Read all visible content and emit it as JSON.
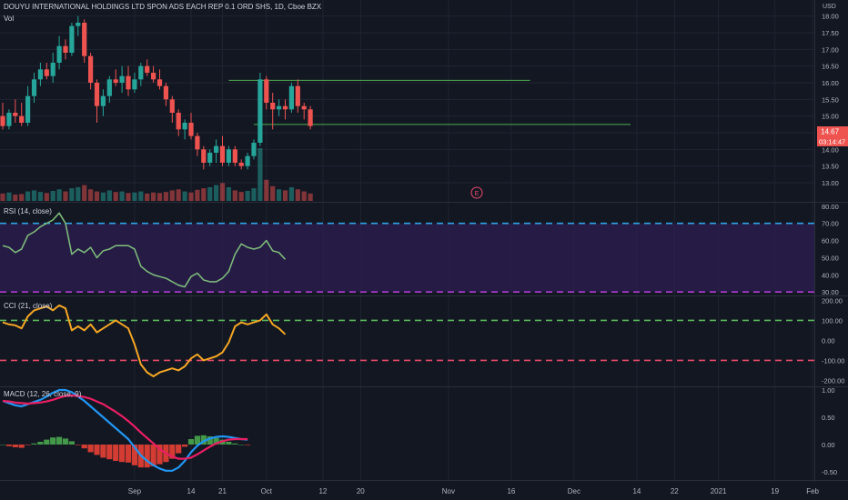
{
  "header": {
    "title": "DOUYU INTERNATIONAL HOLDINGS LTD SPON ADS EACH REP 0.1 ORD SHS, 1D, Cboe BZX",
    "vol_label": "Vol",
    "currency": "USD"
  },
  "colors": {
    "background": "#131722",
    "up": "#26a69a",
    "down": "#ef5350",
    "grid": "#1f2433",
    "divider": "#2a2e39",
    "axis_text": "#b2b5be",
    "trendline": "#4caf50",
    "rsi_line": "#7cb87a",
    "rsi_upper": "#2fa6e8",
    "rsi_lower": "#b03bd4",
    "rsi_band": "#2b1d4d",
    "cci_line": "#f5a623",
    "cci_upper": "#5cb85c",
    "cci_lower": "#e84a6b",
    "macd_line": "#2196f3",
    "signal_line": "#e91e63"
  },
  "x_axis": {
    "ticks": [
      {
        "label": "Sep",
        "pos": 21
      },
      {
        "label": "14",
        "pos": 30
      },
      {
        "label": "21",
        "pos": 35
      },
      {
        "label": "Oct",
        "pos": 42
      },
      {
        "label": "12",
        "pos": 51
      },
      {
        "label": "20",
        "pos": 57
      },
      {
        "label": "Nov",
        "pos": 71
      },
      {
        "label": "16",
        "pos": 81
      },
      {
        "label": "Dec",
        "pos": 91
      },
      {
        "label": "14",
        "pos": 101
      },
      {
        "label": "22",
        "pos": 107
      },
      {
        "label": "2021",
        "pos": 114
      },
      {
        "label": "19",
        "pos": 123
      },
      {
        "label": "Feb",
        "pos": 129
      }
    ]
  },
  "price_axis": {
    "ticks": [
      "18.00",
      "17.50",
      "17.00",
      "16.50",
      "16.00",
      "15.50",
      "15.00",
      "14.50",
      "14.00",
      "13.50",
      "13.00"
    ],
    "last_price": "14.67",
    "countdown": "03:14:47"
  },
  "earnings_marker": "E",
  "panels": {
    "rsi": {
      "label": "RSI (14, close)",
      "ticks": [
        "80.00",
        "70.00",
        "60.00",
        "50.00",
        "40.00",
        "30.00"
      ]
    },
    "cci": {
      "label": "CCI (21, close)",
      "ticks": [
        "200.00",
        "100.00",
        "0.00",
        "-100.00",
        "-200.00"
      ]
    },
    "macd": {
      "label": "MACD (12, 26, close, 9)",
      "ticks": [
        "1.00",
        "0.50",
        "0.00",
        "-0.50"
      ]
    }
  },
  "chart_data": {
    "type": "candlestick",
    "price": {
      "ylim": [
        12.7,
        18.1
      ],
      "candles": [
        {
          "o": 15.0,
          "h": 15.4,
          "l": 14.6,
          "c": 14.7
        },
        {
          "o": 14.7,
          "h": 15.2,
          "l": 14.6,
          "c": 15.1
        },
        {
          "o": 15.1,
          "h": 15.5,
          "l": 14.8,
          "c": 15.0
        },
        {
          "o": 15.0,
          "h": 15.4,
          "l": 14.7,
          "c": 14.8
        },
        {
          "o": 14.8,
          "h": 15.9,
          "l": 14.7,
          "c": 15.6
        },
        {
          "o": 15.6,
          "h": 16.3,
          "l": 15.4,
          "c": 16.1
        },
        {
          "o": 16.1,
          "h": 16.6,
          "l": 15.9,
          "c": 16.4
        },
        {
          "o": 16.4,
          "h": 16.6,
          "l": 16.1,
          "c": 16.2
        },
        {
          "o": 16.2,
          "h": 16.9,
          "l": 16.0,
          "c": 16.6
        },
        {
          "o": 16.6,
          "h": 17.4,
          "l": 16.4,
          "c": 17.1
        },
        {
          "o": 17.1,
          "h": 17.3,
          "l": 16.7,
          "c": 16.9
        },
        {
          "o": 16.9,
          "h": 17.8,
          "l": 16.8,
          "c": 17.7
        },
        {
          "o": 17.7,
          "h": 18.0,
          "l": 17.4,
          "c": 17.8
        },
        {
          "o": 17.8,
          "h": 17.9,
          "l": 16.6,
          "c": 16.8
        },
        {
          "o": 16.8,
          "h": 16.9,
          "l": 15.8,
          "c": 16.0
        },
        {
          "o": 16.0,
          "h": 16.1,
          "l": 14.8,
          "c": 15.3
        },
        {
          "o": 15.3,
          "h": 15.8,
          "l": 15.0,
          "c": 15.6
        },
        {
          "o": 15.6,
          "h": 16.2,
          "l": 15.4,
          "c": 16.1
        },
        {
          "o": 16.1,
          "h": 16.4,
          "l": 15.9,
          "c": 16.0
        },
        {
          "o": 16.0,
          "h": 16.5,
          "l": 15.7,
          "c": 16.2
        },
        {
          "o": 16.2,
          "h": 16.5,
          "l": 15.6,
          "c": 15.8
        },
        {
          "o": 15.8,
          "h": 16.3,
          "l": 15.7,
          "c": 16.1
        },
        {
          "o": 16.1,
          "h": 16.6,
          "l": 15.9,
          "c": 16.5
        },
        {
          "o": 16.5,
          "h": 16.7,
          "l": 16.2,
          "c": 16.3
        },
        {
          "o": 16.3,
          "h": 16.5,
          "l": 16.0,
          "c": 16.1
        },
        {
          "o": 16.1,
          "h": 16.4,
          "l": 15.8,
          "c": 15.9
        },
        {
          "o": 15.9,
          "h": 16.0,
          "l": 15.3,
          "c": 15.5
        },
        {
          "o": 15.5,
          "h": 15.6,
          "l": 14.8,
          "c": 15.1
        },
        {
          "o": 15.1,
          "h": 15.2,
          "l": 14.4,
          "c": 14.6
        },
        {
          "o": 14.6,
          "h": 14.9,
          "l": 14.3,
          "c": 14.8
        },
        {
          "o": 14.8,
          "h": 15.1,
          "l": 14.3,
          "c": 14.4
        },
        {
          "o": 14.4,
          "h": 14.5,
          "l": 13.8,
          "c": 14.0
        },
        {
          "o": 14.0,
          "h": 14.1,
          "l": 13.4,
          "c": 13.6
        },
        {
          "o": 13.6,
          "h": 14.0,
          "l": 13.5,
          "c": 13.9
        },
        {
          "o": 13.9,
          "h": 14.3,
          "l": 13.6,
          "c": 14.1
        },
        {
          "o": 14.1,
          "h": 14.4,
          "l": 13.5,
          "c": 13.6
        },
        {
          "o": 13.6,
          "h": 14.1,
          "l": 13.5,
          "c": 14.0
        },
        {
          "o": 14.0,
          "h": 14.1,
          "l": 13.5,
          "c": 13.6
        },
        {
          "o": 13.6,
          "h": 13.7,
          "l": 13.4,
          "c": 13.5
        },
        {
          "o": 13.5,
          "h": 13.9,
          "l": 13.4,
          "c": 13.8
        },
        {
          "o": 13.8,
          "h": 14.3,
          "l": 13.7,
          "c": 14.2
        },
        {
          "o": 14.2,
          "h": 16.3,
          "l": 14.1,
          "c": 16.1
        },
        {
          "o": 16.1,
          "h": 16.2,
          "l": 15.2,
          "c": 15.4
        },
        {
          "o": 15.4,
          "h": 15.7,
          "l": 14.6,
          "c": 15.2
        },
        {
          "o": 15.2,
          "h": 15.5,
          "l": 15.0,
          "c": 15.3
        },
        {
          "o": 15.3,
          "h": 15.5,
          "l": 14.9,
          "c": 15.2
        },
        {
          "o": 15.2,
          "h": 16.0,
          "l": 15.1,
          "c": 15.9
        },
        {
          "o": 15.9,
          "h": 16.1,
          "l": 15.1,
          "c": 15.3
        },
        {
          "o": 15.3,
          "h": 15.4,
          "l": 14.9,
          "c": 15.2
        },
        {
          "o": 15.2,
          "h": 15.3,
          "l": 14.6,
          "c": 14.7
        }
      ],
      "volume": [
        14,
        16,
        12,
        13,
        18,
        20,
        17,
        15,
        19,
        22,
        18,
        24,
        26,
        30,
        22,
        18,
        16,
        20,
        17,
        18,
        15,
        16,
        18,
        14,
        16,
        15,
        17,
        20,
        22,
        18,
        16,
        21,
        24,
        26,
        30,
        34,
        26,
        20,
        17,
        19,
        24,
        100,
        40,
        28,
        22,
        20,
        26,
        22,
        18,
        14
      ],
      "trendlines": [
        {
          "value": 16.07,
          "x_start": 36,
          "x_end": 84
        },
        {
          "value": 14.75,
          "x_start": 40,
          "x_end": 100
        }
      ]
    },
    "rsi": {
      "ylim": [
        28,
        82
      ],
      "upper": 70,
      "lower": 30,
      "values": [
        57,
        56,
        53,
        55,
        63,
        65,
        68,
        70,
        72,
        76,
        70,
        52,
        55,
        53,
        56,
        50,
        54,
        55,
        57,
        57,
        57,
        55,
        45,
        42,
        40,
        39,
        38,
        36,
        34,
        33,
        39,
        41,
        37,
        36,
        36,
        38,
        42,
        52,
        58,
        56,
        55,
        56,
        60,
        54,
        53,
        49
      ]
    },
    "cci": {
      "ylim": [
        -230,
        220
      ],
      "upper": 100,
      "lower": -100,
      "values": [
        90,
        80,
        75,
        60,
        120,
        150,
        160,
        170,
        150,
        175,
        160,
        50,
        70,
        50,
        80,
        40,
        60,
        80,
        100,
        80,
        60,
        -20,
        -120,
        -160,
        -180,
        -160,
        -150,
        -140,
        -150,
        -130,
        -90,
        -70,
        -100,
        -90,
        -80,
        -60,
        -10,
        70,
        90,
        80,
        90,
        100,
        130,
        80,
        60,
        30
      ]
    },
    "macd": {
      "ylim": [
        -0.65,
        1.05
      ],
      "macd_values": [
        0.8,
        0.76,
        0.72,
        0.7,
        0.74,
        0.78,
        0.82,
        0.88,
        0.95,
        1.0,
        1.0,
        0.96,
        0.88,
        0.8,
        0.7,
        0.6,
        0.5,
        0.4,
        0.3,
        0.2,
        0.1,
        -0.05,
        -0.2,
        -0.3,
        -0.38,
        -0.44,
        -0.48,
        -0.48,
        -0.42,
        -0.3,
        -0.14,
        -0.02,
        0.06,
        0.11,
        0.14,
        0.15,
        0.14,
        0.12,
        0.1,
        0.09
      ],
      "signal_values": [
        0.8,
        0.79,
        0.77,
        0.76,
        0.75,
        0.76,
        0.77,
        0.79,
        0.82,
        0.86,
        0.89,
        0.9,
        0.89,
        0.87,
        0.84,
        0.79,
        0.74,
        0.67,
        0.6,
        0.52,
        0.43,
        0.33,
        0.22,
        0.12,
        0.02,
        -0.08,
        -0.16,
        -0.22,
        -0.26,
        -0.26,
        -0.24,
        -0.18,
        -0.11,
        -0.04,
        0.02,
        0.06,
        0.09,
        0.1,
        0.1,
        0.1
      ],
      "histogram": [
        0.0,
        -0.03,
        -0.05,
        -0.06,
        -0.01,
        0.02,
        0.05,
        0.09,
        0.13,
        0.14,
        0.11,
        0.06,
        -0.01,
        -0.07,
        -0.14,
        -0.19,
        -0.24,
        -0.27,
        -0.3,
        -0.32,
        -0.33,
        -0.38,
        -0.42,
        -0.42,
        -0.4,
        -0.36,
        -0.32,
        -0.26,
        -0.16,
        -0.04,
        0.1,
        0.16,
        0.17,
        0.15,
        0.12,
        0.09,
        0.05,
        0.02,
        0.0,
        -0.01
      ]
    }
  }
}
